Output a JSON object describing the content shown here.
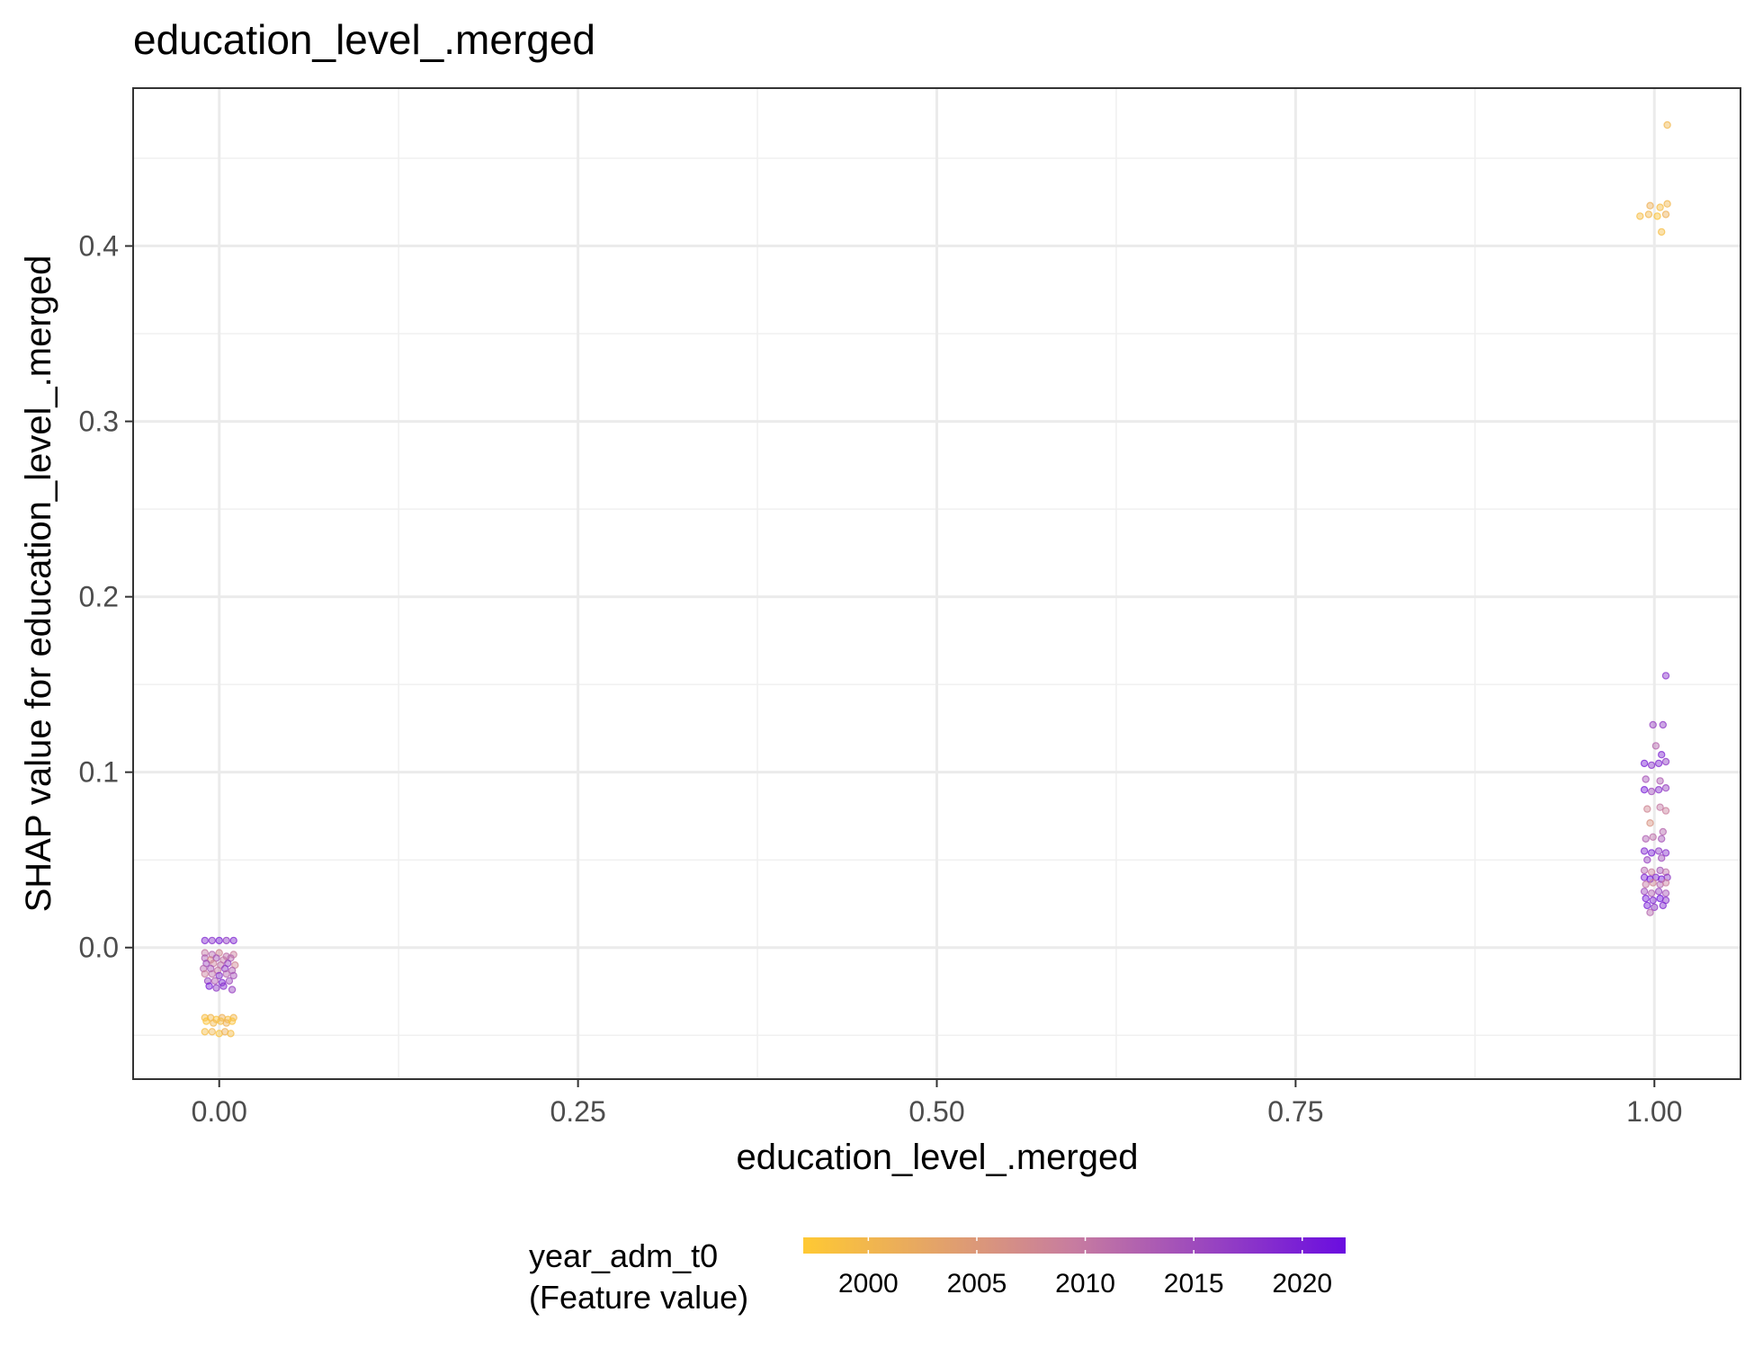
{
  "chart_data": {
    "type": "scatter",
    "title": "education_level_.merged",
    "xlabel": "education_level_.merged",
    "ylabel": "SHAP value for education_level_.merged",
    "xlim": [
      -0.06,
      1.06
    ],
    "ylim": [
      -0.075,
      0.49
    ],
    "x_ticks": [
      0.0,
      0.25,
      0.5,
      0.75,
      1.0
    ],
    "x_tick_labels": [
      "0.00",
      "0.25",
      "0.50",
      "0.75",
      "1.00"
    ],
    "y_ticks": [
      0.0,
      0.1,
      0.2,
      0.3,
      0.4
    ],
    "y_tick_labels": [
      "0.0",
      "0.1",
      "0.2",
      "0.3",
      "0.4"
    ],
    "grid": true,
    "legend": {
      "title_line1": "year_adm_t0",
      "title_line2": "(Feature value)",
      "placement": "bottom",
      "min": 1997,
      "max": 2022,
      "ticks": [
        2000,
        2005,
        2010,
        2015,
        2020
      ],
      "tick_labels": [
        "2000",
        "2005",
        "2010",
        "2015",
        "2020"
      ],
      "color_low": "#FFC933",
      "color_mid": "#C77CA0",
      "color_high": "#6A0DE0"
    },
    "series": [
      {
        "values": [
          [
            -0.01,
            0.004,
            2019
          ],
          [
            -0.005,
            0.004,
            2018
          ],
          [
            0.0,
            0.004,
            2020
          ],
          [
            0.005,
            0.004,
            2017
          ],
          [
            0.01,
            0.004,
            2019
          ],
          [
            -0.01,
            -0.003,
            2010
          ],
          [
            -0.005,
            -0.004,
            2012
          ],
          [
            0.0,
            -0.003,
            2008
          ],
          [
            0.005,
            -0.005,
            2011
          ],
          [
            0.01,
            -0.004,
            2009
          ],
          [
            -0.01,
            -0.006,
            2013
          ],
          [
            -0.006,
            -0.007,
            2007
          ],
          [
            -0.002,
            -0.006,
            2014
          ],
          [
            0.003,
            -0.007,
            2010
          ],
          [
            0.008,
            -0.006,
            2012
          ],
          [
            -0.009,
            -0.009,
            2015
          ],
          [
            -0.004,
            -0.009,
            2009
          ],
          [
            0.001,
            -0.01,
            2011
          ],
          [
            0.006,
            -0.009,
            2016
          ],
          [
            0.011,
            -0.01,
            2008
          ],
          [
            -0.011,
            -0.012,
            2012
          ],
          [
            -0.006,
            -0.012,
            2014
          ],
          [
            -0.001,
            -0.013,
            2010
          ],
          [
            0.004,
            -0.012,
            2017
          ],
          [
            0.009,
            -0.013,
            2013
          ],
          [
            -0.01,
            -0.015,
            2009
          ],
          [
            -0.005,
            -0.015,
            2011
          ],
          [
            0.0,
            -0.016,
            2018
          ],
          [
            0.005,
            -0.015,
            2012
          ],
          [
            0.01,
            -0.016,
            2014
          ],
          [
            -0.008,
            -0.019,
            2016
          ],
          [
            -0.003,
            -0.019,
            2013
          ],
          [
            0.002,
            -0.02,
            2019
          ],
          [
            0.007,
            -0.019,
            2015
          ],
          [
            -0.007,
            -0.022,
            2020
          ],
          [
            -0.002,
            -0.023,
            2017
          ],
          [
            0.003,
            -0.022,
            2018
          ],
          [
            0.009,
            -0.024,
            2016
          ],
          [
            -0.01,
            -0.04,
            1999
          ],
          [
            -0.006,
            -0.04,
            2000
          ],
          [
            -0.002,
            -0.041,
            1998
          ],
          [
            0.002,
            -0.04,
            2001
          ],
          [
            0.006,
            -0.041,
            1999
          ],
          [
            0.01,
            -0.04,
            2000
          ],
          [
            -0.009,
            -0.042,
            1998
          ],
          [
            -0.004,
            -0.043,
            2000
          ],
          [
            0.001,
            -0.042,
            1999
          ],
          [
            0.005,
            -0.043,
            2001
          ],
          [
            0.009,
            -0.042,
            1998
          ],
          [
            -0.01,
            -0.048,
            1999
          ],
          [
            -0.005,
            -0.048,
            2000
          ],
          [
            0.0,
            -0.049,
            1998
          ],
          [
            0.004,
            -0.048,
            2001
          ],
          [
            0.008,
            -0.049,
            1999
          ],
          [
            0.99,
            0.417,
            1999
          ],
          [
            0.996,
            0.418,
            2000
          ],
          [
            1.002,
            0.417,
            1998
          ],
          [
            1.008,
            0.418,
            2001
          ],
          [
            1.004,
            0.422,
            1999
          ],
          [
            1.009,
            0.424,
            2000
          ],
          [
            0.997,
            0.423,
            2001
          ],
          [
            1.005,
            0.408,
            1999
          ],
          [
            1.009,
            0.469,
            2000
          ],
          [
            1.008,
            0.155,
            2018
          ],
          [
            0.999,
            0.127,
            2016
          ],
          [
            1.006,
            0.127,
            2017
          ],
          [
            1.001,
            0.115,
            2012
          ],
          [
            1.005,
            0.11,
            2019
          ],
          [
            0.993,
            0.105,
            2020
          ],
          [
            0.998,
            0.104,
            2018
          ],
          [
            1.003,
            0.105,
            2019
          ],
          [
            1.008,
            0.106,
            2017
          ],
          [
            0.994,
            0.096,
            2014
          ],
          [
            1.004,
            0.095,
            2013
          ],
          [
            0.993,
            0.09,
            2020
          ],
          [
            0.998,
            0.089,
            2015
          ],
          [
            1.003,
            0.09,
            2018
          ],
          [
            1.008,
            0.091,
            2016
          ],
          [
            0.995,
            0.079,
            2008
          ],
          [
            1.004,
            0.08,
            2010
          ],
          [
            1.008,
            0.078,
            2009
          ],
          [
            0.997,
            0.071,
            2006
          ],
          [
            1.006,
            0.066,
            2012
          ],
          [
            0.994,
            0.062,
            2013
          ],
          [
            0.999,
            0.063,
            2011
          ],
          [
            1.005,
            0.062,
            2014
          ],
          [
            0.993,
            0.055,
            2019
          ],
          [
            0.998,
            0.054,
            2020
          ],
          [
            1.003,
            0.055,
            2017
          ],
          [
            1.008,
            0.054,
            2018
          ],
          [
            0.995,
            0.05,
            2016
          ],
          [
            1.005,
            0.051,
            2015
          ],
          [
            0.993,
            0.044,
            2012
          ],
          [
            0.998,
            0.043,
            2009
          ],
          [
            1.004,
            0.044,
            2014
          ],
          [
            1.008,
            0.043,
            2011
          ],
          [
            0.993,
            0.04,
            2019
          ],
          [
            0.997,
            0.039,
            2021
          ],
          [
            1.001,
            0.04,
            2018
          ],
          [
            1.005,
            0.039,
            2020
          ],
          [
            1.009,
            0.04,
            2017
          ],
          [
            0.994,
            0.036,
            2010
          ],
          [
            0.999,
            0.037,
            2008
          ],
          [
            1.004,
            0.036,
            2012
          ],
          [
            1.008,
            0.037,
            2009
          ],
          [
            0.993,
            0.032,
            2015
          ],
          [
            0.998,
            0.031,
            2013
          ],
          [
            1.003,
            0.032,
            2016
          ],
          [
            1.008,
            0.031,
            2014
          ],
          [
            0.994,
            0.028,
            2020
          ],
          [
            0.999,
            0.027,
            2019
          ],
          [
            1.004,
            0.028,
            2021
          ],
          [
            1.008,
            0.027,
            2018
          ],
          [
            0.995,
            0.024,
            2020
          ],
          [
            1.0,
            0.023,
            2017
          ],
          [
            1.006,
            0.024,
            2019
          ],
          [
            0.997,
            0.02,
            2012
          ]
        ]
      }
    ]
  }
}
